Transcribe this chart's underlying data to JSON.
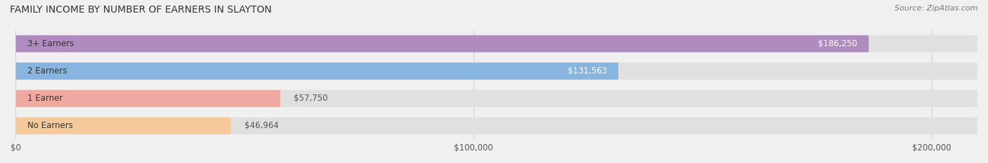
{
  "title": "FAMILY INCOME BY NUMBER OF EARNERS IN SLAYTON",
  "source": "Source: ZipAtlas.com",
  "categories": [
    "No Earners",
    "1 Earner",
    "2 Earners",
    "3+ Earners"
  ],
  "values": [
    46964,
    57750,
    131563,
    186250
  ],
  "labels": [
    "$46,964",
    "$57,750",
    "$131,563",
    "$186,250"
  ],
  "bar_colors": [
    "#f5c999",
    "#f0a9a0",
    "#88b4e0",
    "#b08bbf"
  ],
  "bar_edge_colors": [
    "#e8a850",
    "#d97060",
    "#5580c0",
    "#8855a0"
  ],
  "label_colors": [
    "#555555",
    "#555555",
    "#ffffff",
    "#ffffff"
  ],
  "background_color": "#f0f0f0",
  "bar_bg_color": "#e8e8e8",
  "xlim": [
    0,
    210000
  ],
  "xticks": [
    0,
    100000,
    200000
  ],
  "xticklabels": [
    "$0",
    "$100,000",
    "$200,000"
  ],
  "figsize": [
    14.06,
    2.33
  ],
  "dpi": 100
}
